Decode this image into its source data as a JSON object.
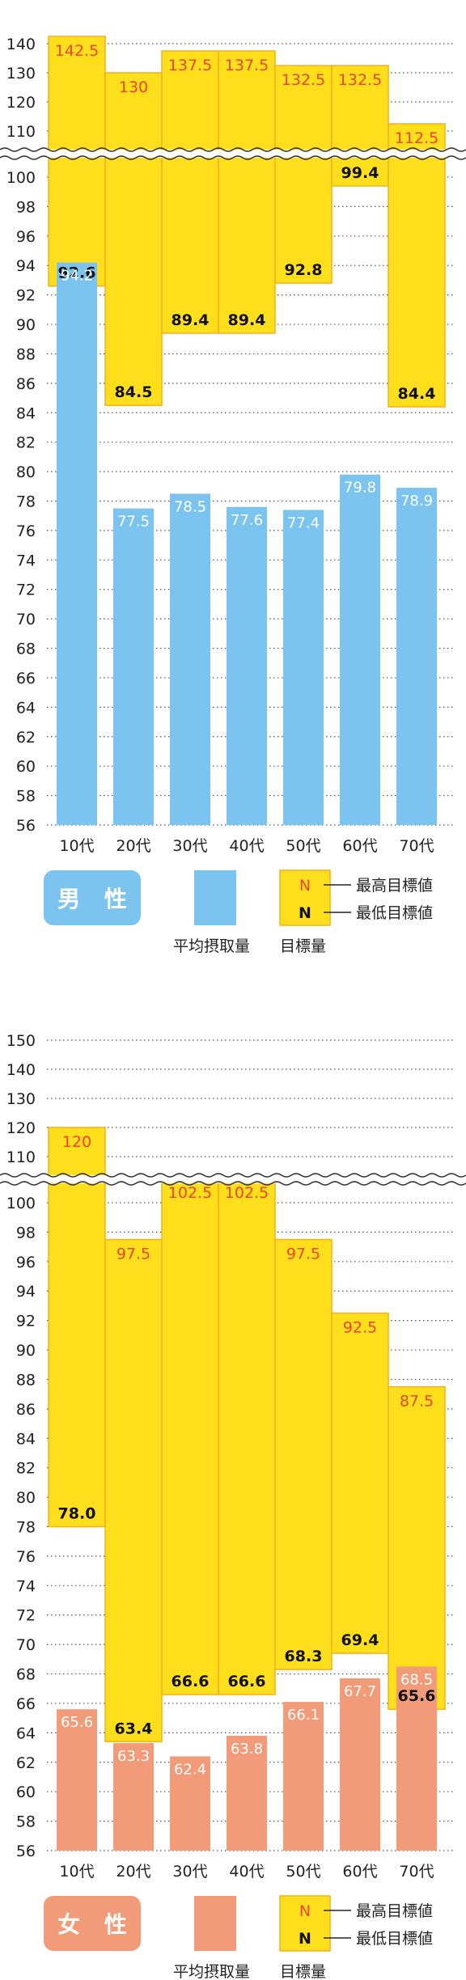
{
  "charts": [
    {
      "id": "male",
      "badge": "男 性",
      "badge_color": "#7cc4f0",
      "avg_color": "#7cc4f0",
      "legend": {
        "avg_label": "平均摂取量",
        "target_label": "目標量",
        "n_symbol": "N",
        "max_label": "最高目標値",
        "min_label": "最低目標値"
      }
    },
    {
      "id": "female",
      "badge": "女 性",
      "badge_color": "#f29b78",
      "avg_color": "#f29b78",
      "legend": {
        "avg_label": "平均摂取量",
        "target_label": "目標量",
        "n_symbol": "N",
        "max_label": "最高目標値",
        "min_label": "最低目標値"
      }
    }
  ],
  "colors": {
    "target": "#ffdf1c",
    "target_border": "#f2b01c",
    "max_label": "#e8452c",
    "grid": "#555555"
  },
  "chart_data": [
    {
      "type": "bar",
      "categories": [
        "10代",
        "20代",
        "30代",
        "40代",
        "50代",
        "60代",
        "70代"
      ],
      "series": [
        {
          "name": "平均摂取量",
          "values": [
            94.2,
            77.5,
            78.5,
            77.6,
            77.4,
            79.8,
            78.9
          ]
        },
        {
          "name": "最高目標値",
          "values": [
            142.5,
            130,
            137.5,
            137.5,
            132.5,
            132.5,
            112.5
          ]
        },
        {
          "name": "最低目標値",
          "values": [
            92.6,
            84.5,
            89.4,
            89.4,
            92.8,
            99.4,
            84.4
          ]
        }
      ],
      "y_ticks_lower": [
        56,
        58,
        60,
        62,
        64,
        66,
        68,
        70,
        72,
        74,
        76,
        78,
        80,
        82,
        84,
        86,
        88,
        90,
        92,
        94,
        96,
        98,
        100
      ],
      "y_ticks_upper": [
        110,
        120,
        130,
        140
      ],
      "axis_break": true,
      "ylim": [
        56,
        145
      ],
      "grid": true
    },
    {
      "type": "bar",
      "categories": [
        "10代",
        "20代",
        "30代",
        "40代",
        "50代",
        "60代",
        "70代"
      ],
      "series": [
        {
          "name": "平均摂取量",
          "values": [
            65.6,
            63.3,
            62.4,
            63.8,
            66.1,
            67.7,
            68.5
          ]
        },
        {
          "name": "最高目標値",
          "values": [
            120,
            97.5,
            102.5,
            102.5,
            97.5,
            92.5,
            87.5
          ]
        },
        {
          "name": "最低目標値",
          "values": [
            78.0,
            63.4,
            66.6,
            66.6,
            68.3,
            69.4,
            65.6
          ]
        }
      ],
      "y_ticks_lower": [
        56,
        58,
        60,
        62,
        64,
        66,
        68,
        70,
        72,
        74,
        76,
        78,
        80,
        82,
        84,
        86,
        88,
        90,
        92,
        94,
        96,
        98,
        100
      ],
      "y_ticks_upper": [
        110,
        120,
        130,
        140,
        150
      ],
      "axis_break": true,
      "ylim": [
        56,
        150
      ],
      "grid": true
    }
  ]
}
